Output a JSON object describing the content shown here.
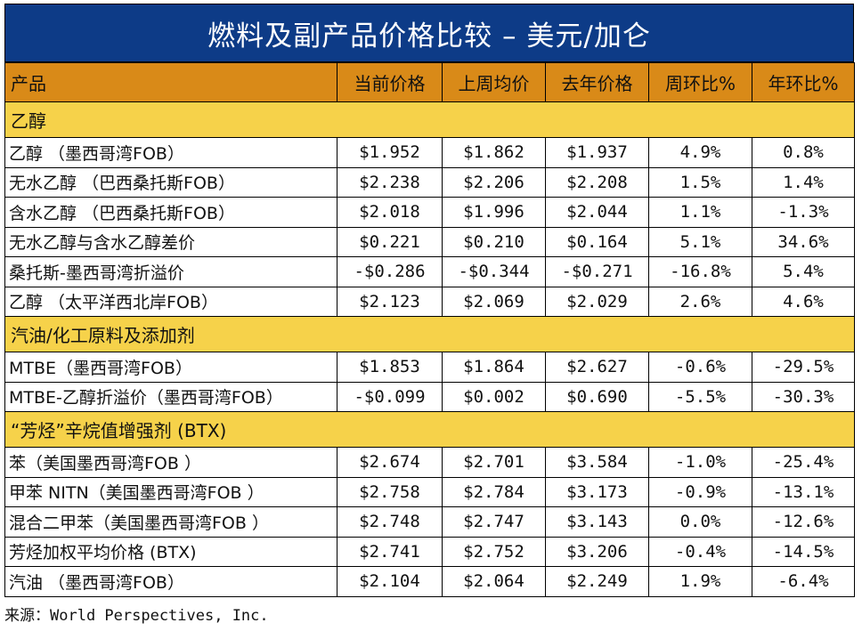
{
  "title": "燃料及副产品价格比较 – 美元/加仑",
  "header": [
    "产品",
    "当前价格",
    "上周均价",
    "去年价格",
    "周环比%",
    "年环比%"
  ],
  "sections": [
    {
      "name": "乙醇",
      "rows": [
        [
          "乙醇 （墨西哥湾FOB）",
          "$1.952",
          "$1.862",
          "$1.937",
          "4.9%",
          "0.8%"
        ],
        [
          "无水乙醇 （巴西桑托斯FOB）",
          "$2.238",
          "$2.206",
          "$2.208",
          "1.5%",
          "1.4%"
        ],
        [
          "含水乙醇 （巴西桑托斯FOB）",
          "$2.018",
          "$1.996",
          "$2.044",
          "1.1%",
          "-1.3%"
        ],
        [
          "无水乙醇与含水乙醇差价",
          "$0.221",
          "$0.210",
          "$0.164",
          "5.1%",
          "34.6%"
        ],
        [
          "桑托斯-墨西哥湾折溢价",
          "-$0.286",
          "-$0.344",
          "-$0.271",
          "-16.8%",
          "5.4%"
        ],
        [
          "乙醇 （太平洋西北岸FOB）",
          "$2.123",
          "$2.069",
          "$2.029",
          "2.6%",
          "4.6%"
        ]
      ]
    },
    {
      "name": "汽油/化工原料及添加剂",
      "rows": [
        [
          "MTBE（墨西哥湾FOB）",
          "$1.853",
          "$1.864",
          "$2.627",
          "-0.6%",
          "-29.5%"
        ],
        [
          "MTBE-乙醇折溢价（墨西哥湾FOB）",
          "-$0.099",
          "$0.002",
          "$0.690",
          "-5.5%",
          "-30.3%"
        ]
      ]
    },
    {
      "name": "“芳烃”辛烷值增强剂 (BTX)",
      "rows": [
        [
          "苯（美国墨西哥湾FOB ）",
          "$2.674",
          "$2.701",
          "$3.584",
          "-1.0%",
          "-25.4%"
        ],
        [
          "甲苯 NITN（美国墨西哥湾FOB ）",
          "$2.758",
          "$2.784",
          "$3.173",
          "-0.9%",
          "-13.1%"
        ],
        [
          "混合二甲苯（美国墨西哥湾FOB ）",
          "$2.748",
          "$2.747",
          "$3.143",
          "0.0%",
          "-12.6%"
        ],
        [
          "芳烃加权平均价格 (BTX)",
          "$2.741",
          "$2.752",
          "$3.206",
          "-0.4%",
          "-14.5%"
        ],
        [
          "汽油 （墨西哥湾FOB）",
          "$2.104",
          "$2.064",
          "$2.249",
          "1.9%",
          "-6.4%"
        ]
      ]
    }
  ],
  "source": "来源：World Perspectives, Inc.",
  "colors": {
    "title_bg": "#0d3b87",
    "header_bg": "#d98a18",
    "section_bg": "#f6d24a"
  }
}
